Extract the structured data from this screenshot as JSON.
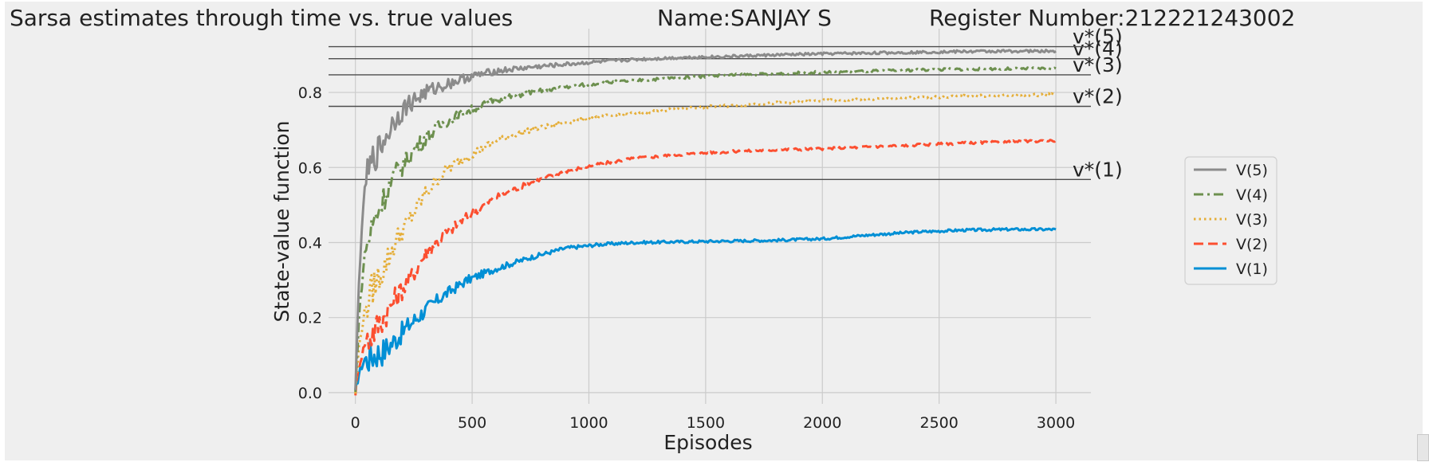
{
  "chart_data": {
    "type": "line",
    "title_left": "Sarsa estimates through time vs. true values",
    "title_center": "Name:SANJAY S",
    "title_right": "Register Number:212221243002",
    "xlabel": "Episodes",
    "ylabel": "State-value function",
    "xlim": [
      -115,
      3150
    ],
    "ylim": [
      -0.03,
      0.97
    ],
    "x_ticks": [
      0,
      500,
      1000,
      1500,
      2000,
      2500,
      3000
    ],
    "y_ticks": [
      0.0,
      0.2,
      0.4,
      0.6,
      0.8
    ],
    "x_tick_labels": [
      "0",
      "500",
      "1000",
      "1500",
      "2000",
      "2500",
      "3000"
    ],
    "y_tick_labels": [
      "0.0",
      "0.2",
      "0.4",
      "0.6",
      "0.8"
    ],
    "grid": true,
    "legend_position": "right",
    "true_values": [
      {
        "label": "v*(1)",
        "value": 0.568
      },
      {
        "label": "v*(2)",
        "value": 0.763
      },
      {
        "label": "v*(3)",
        "value": 0.847
      },
      {
        "label": "v*(4)",
        "value": 0.89
      },
      {
        "label": "v*(5)",
        "value": 0.922
      }
    ],
    "series": [
      {
        "name": "V(5)",
        "color": "#8b8b8b",
        "dash": "solid",
        "x": [
          0,
          15,
          40,
          75,
          120,
          170,
          230,
          300,
          380,
          480,
          600,
          750,
          900,
          1050,
          1200,
          1400,
          1600,
          1800,
          2000,
          2200,
          2400,
          2600,
          2800,
          3000
        ],
        "values": [
          0.0,
          0.3,
          0.55,
          0.62,
          0.67,
          0.73,
          0.77,
          0.8,
          0.82,
          0.84,
          0.857,
          0.867,
          0.875,
          0.882,
          0.888,
          0.893,
          0.896,
          0.9,
          0.903,
          0.905,
          0.907,
          0.909,
          0.91,
          0.91
        ]
      },
      {
        "name": "V(4)",
        "color": "#6d904f",
        "dash": "dashdot",
        "x": [
          0,
          15,
          40,
          75,
          120,
          170,
          230,
          300,
          380,
          480,
          600,
          750,
          900,
          1050,
          1200,
          1400,
          1600,
          1800,
          2000,
          2200,
          2400,
          2600,
          2800,
          3000
        ],
        "values": [
          0.0,
          0.2,
          0.37,
          0.45,
          0.52,
          0.58,
          0.63,
          0.68,
          0.72,
          0.75,
          0.78,
          0.8,
          0.815,
          0.825,
          0.832,
          0.84,
          0.846,
          0.85,
          0.854,
          0.857,
          0.86,
          0.862,
          0.863,
          0.864
        ]
      },
      {
        "name": "V(3)",
        "color": "#e5ae38",
        "dash": "dotted",
        "x": [
          0,
          15,
          40,
          75,
          120,
          170,
          230,
          300,
          380,
          480,
          600,
          750,
          900,
          1050,
          1200,
          1400,
          1600,
          1800,
          2000,
          2200,
          2400,
          2600,
          2800,
          3000
        ],
        "values": [
          0.0,
          0.12,
          0.22,
          0.28,
          0.33,
          0.4,
          0.46,
          0.53,
          0.59,
          0.63,
          0.67,
          0.7,
          0.72,
          0.735,
          0.745,
          0.757,
          0.765,
          0.772,
          0.778,
          0.782,
          0.786,
          0.79,
          0.792,
          0.795
        ]
      },
      {
        "name": "V(2)",
        "color": "#fc4f30",
        "dash": "dashed",
        "x": [
          0,
          15,
          40,
          75,
          120,
          170,
          230,
          300,
          380,
          480,
          600,
          750,
          900,
          1050,
          1200,
          1400,
          1600,
          1800,
          2000,
          2200,
          2400,
          2600,
          2800,
          3000
        ],
        "values": [
          0.0,
          0.07,
          0.13,
          0.16,
          0.2,
          0.25,
          0.3,
          0.37,
          0.42,
          0.47,
          0.52,
          0.56,
          0.59,
          0.61,
          0.625,
          0.635,
          0.642,
          0.647,
          0.65,
          0.655,
          0.66,
          0.665,
          0.668,
          0.672
        ]
      },
      {
        "name": "V(1)",
        "color": "#008fd5",
        "dash": "solid",
        "x": [
          0,
          15,
          40,
          75,
          120,
          170,
          230,
          300,
          380,
          480,
          600,
          750,
          900,
          1050,
          1200,
          1400,
          1600,
          1800,
          2000,
          2200,
          2400,
          2600,
          2800,
          3000
        ],
        "values": [
          0.0,
          0.05,
          0.09,
          0.1,
          0.11,
          0.14,
          0.18,
          0.22,
          0.26,
          0.3,
          0.33,
          0.36,
          0.385,
          0.395,
          0.4,
          0.402,
          0.404,
          0.406,
          0.41,
          0.42,
          0.428,
          0.433,
          0.435,
          0.435
        ]
      }
    ],
    "legend_order": [
      "V(5)",
      "V(4)",
      "V(3)",
      "V(2)",
      "V(1)"
    ]
  }
}
